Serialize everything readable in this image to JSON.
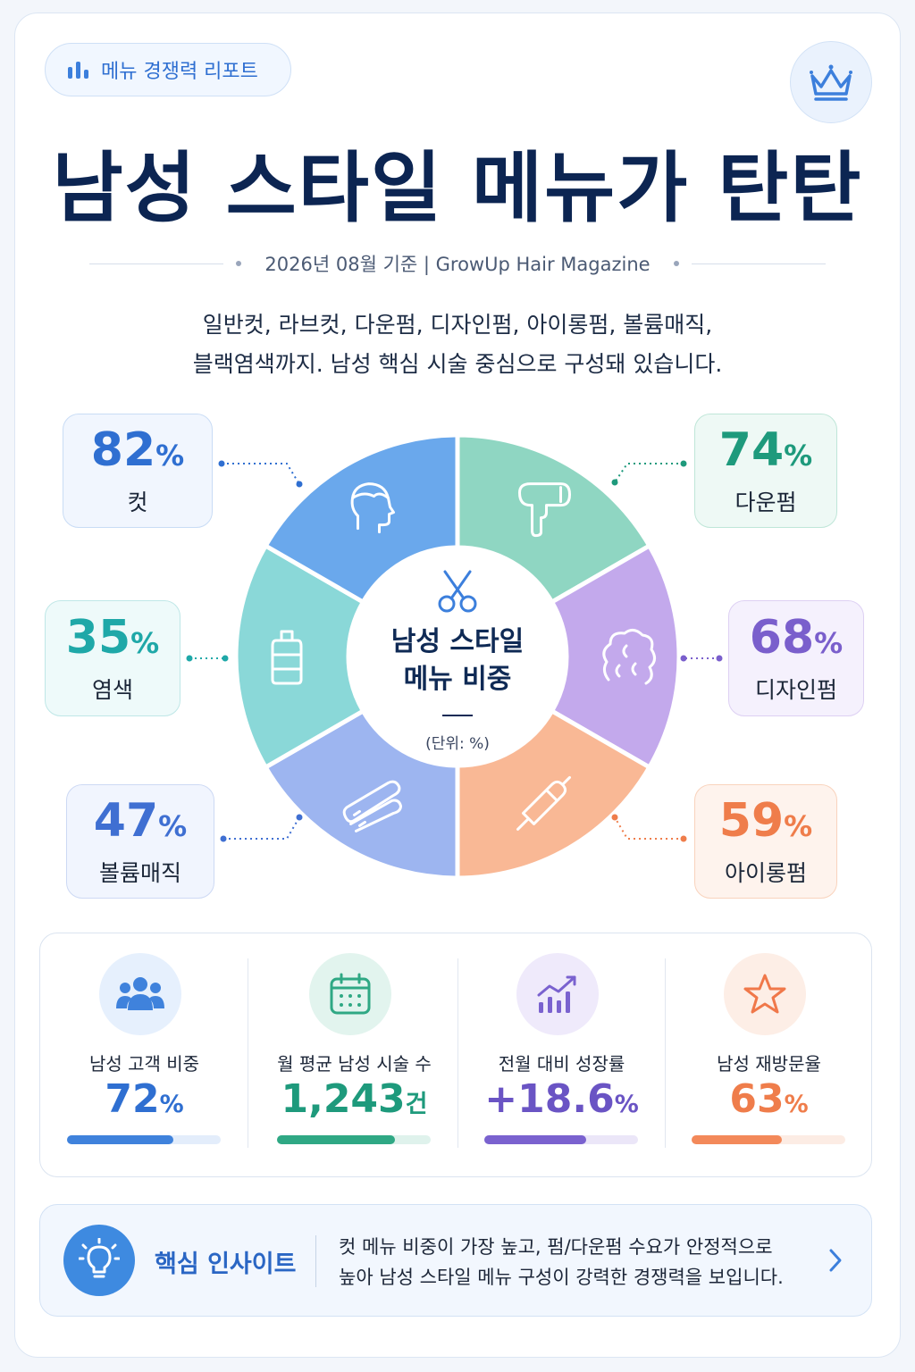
{
  "header": {
    "badge_label": "메뉴 경쟁력 리포트",
    "title": "남성 스타일 메뉴가 탄탄",
    "subtitle": "2026년 08월 기준  |  GrowUp Hair Magazine",
    "intro_line1": "일반컷, 라브컷, 다운펌, 디자인펌, 아이롱펌, 볼륨매직,",
    "intro_line2": "블랙염색까지. 남성 핵심 시술 중심으로 구성돼 있습니다."
  },
  "chart_data": {
    "type": "pie",
    "title_line1": "남성 스타일",
    "title_line2": "메뉴 비중",
    "unit_note": "(단위: %)",
    "percent_sign": "%",
    "categories": [
      "컷",
      "다운펌",
      "디자인펌",
      "아이롱펌",
      "볼륨매직",
      "염색"
    ],
    "values": [
      82,
      74,
      68,
      59,
      47,
      35
    ],
    "icons": [
      "head-profile-icon",
      "hair-dryer-icon",
      "curly-hair-icon",
      "curling-iron-icon",
      "flat-iron-icon",
      "bottle-icon"
    ],
    "colors": [
      "#6aa8ec",
      "#8fd6c2",
      "#c3a9ec",
      "#f9b895",
      "#9db5f0",
      "#8ad8d8"
    ],
    "text_colors": [
      "#2f6fd1",
      "#1e9a7c",
      "#7a5fcc",
      "#ef7d4b",
      "#3f6fd2",
      "#1fa8a8"
    ]
  },
  "metrics": [
    {
      "label": "남성 고객 비중",
      "value": "72",
      "unit": "%",
      "progress": 0.69,
      "color": "#3f82dc",
      "track": "#e3edfb",
      "icon_bg": "#e6f0fd",
      "icon": "users-icon"
    },
    {
      "label": "월 평균 남성 시술 수",
      "value": "1,243",
      "unit": "건",
      "progress": 0.77,
      "color": "#2fa884",
      "track": "#dff2ec",
      "icon_bg": "#e2f4ee",
      "icon": "calendar-icon"
    },
    {
      "label": "전월 대비 성장률",
      "value": "+18.6",
      "unit": "%",
      "progress": 0.66,
      "color": "#7a62cf",
      "track": "#ebe6f8",
      "icon_bg": "#efeafb",
      "icon": "growth-chart-icon"
    },
    {
      "label": "남성 재방문율",
      "value": "63",
      "unit": "%",
      "progress": 0.59,
      "color": "#f3895a",
      "track": "#fcece4",
      "icon_bg": "#fdeee6",
      "icon": "star-icon"
    }
  ],
  "insight": {
    "title": "핵심 인사이트",
    "line1": "컷 메뉴 비중이 가장 높고, 펌/다운펌 수요가 안정적으로",
    "line2": "높아 남성 스타일 메뉴 구성이 강력한 경쟁력을 보입니다."
  }
}
